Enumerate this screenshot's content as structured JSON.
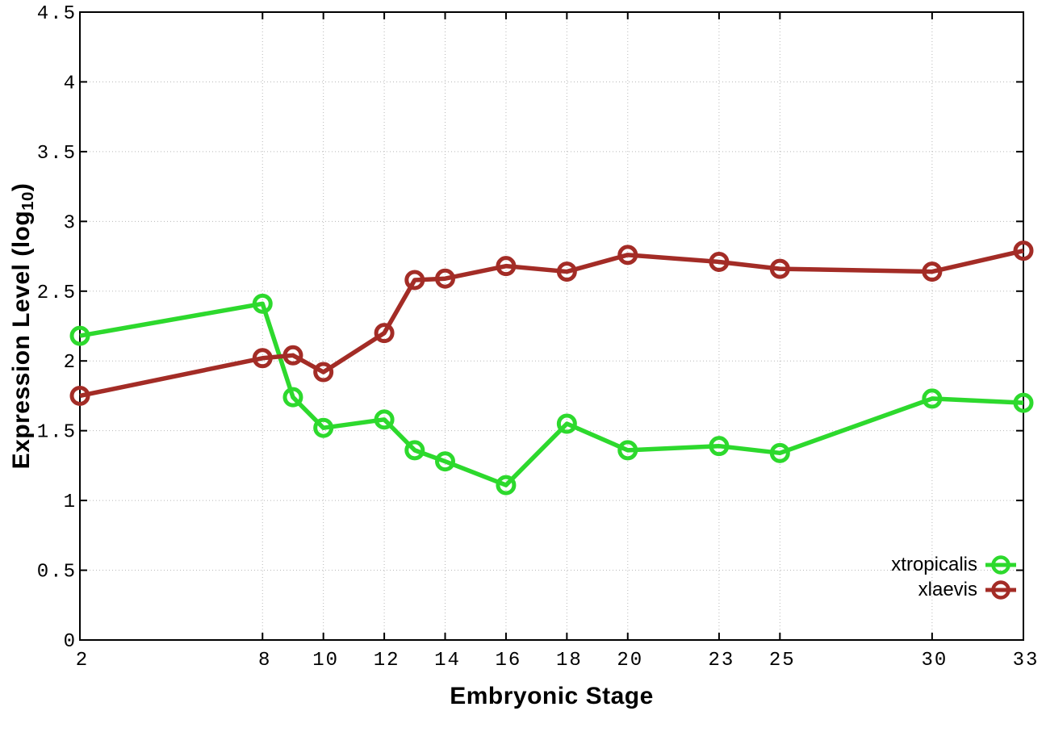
{
  "figure": {
    "background": "#ffffff",
    "axis_color": "#000000",
    "grid_color": "#b8b8b8",
    "text_color": "#000000"
  },
  "chart_data": {
    "type": "line",
    "title": "",
    "xlabel": "Embryonic Stage",
    "ylabel": "Expression Level (log10)",
    "ylabel_parts": {
      "prefix": "Expression Level (log",
      "sub": "10",
      "suffix": ")"
    },
    "xlim": [
      2,
      33
    ],
    "ylim": [
      0,
      4.5
    ],
    "xticks": [
      2,
      8,
      10,
      12,
      14,
      16,
      18,
      20,
      23,
      25,
      30,
      33
    ],
    "yticks": [
      0,
      0.5,
      1,
      1.5,
      2,
      2.5,
      3,
      3.5,
      4,
      4.5
    ],
    "grid": true,
    "grid_style": "dotted",
    "legend_position": "inside-bottom-right",
    "x": [
      2,
      8,
      9,
      10,
      12,
      13,
      14,
      16,
      18,
      20,
      23,
      25,
      30,
      33
    ],
    "series": [
      {
        "name": "xtropicalis",
        "color": "#2dd92d",
        "marker": "open-circle",
        "values": [
          2.18,
          2.41,
          1.74,
          1.52,
          1.58,
          1.36,
          1.28,
          1.11,
          1.55,
          1.36,
          1.39,
          1.34,
          1.73,
          1.7
        ]
      },
      {
        "name": "xlaevis",
        "color": "#a32c26",
        "marker": "open-circle",
        "values": [
          1.75,
          2.02,
          2.04,
          1.92,
          2.2,
          2.58,
          2.59,
          2.68,
          2.64,
          2.76,
          2.71,
          2.66,
          2.64,
          2.79
        ]
      }
    ]
  }
}
